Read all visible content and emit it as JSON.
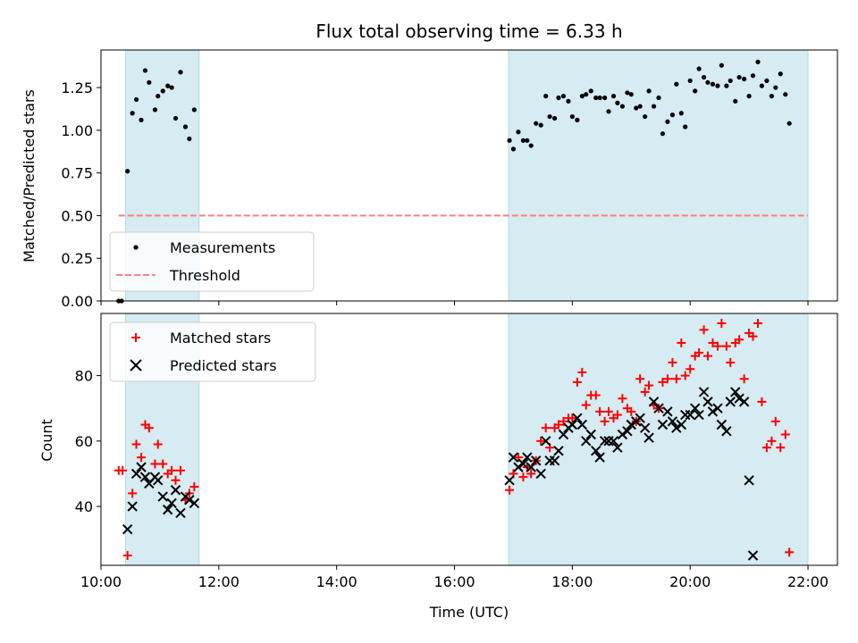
{
  "chart_data": [
    {
      "type": "scatter",
      "title": "Flux total observing time = 6.33 h",
      "xlabel": "",
      "ylabel": "Matched/Predicted stars",
      "xlim": [
        "10:00",
        "22:30"
      ],
      "ylim": [
        0,
        1.47
      ],
      "yticks": [
        "0.00",
        "0.25",
        "0.50",
        "0.75",
        "1.00",
        "1.25"
      ],
      "shaded_spans": [
        [
          "10:25",
          "11:40"
        ],
        [
          "16:55",
          "22:00"
        ]
      ],
      "legend_position": "lower-left",
      "series": [
        {
          "name": "Measurements",
          "marker": "dot",
          "color": "#000000",
          "points": [
            [
              "10:18",
              0.0
            ],
            [
              "10:21",
              0.0
            ],
            [
              "10:27",
              0.76
            ],
            [
              "10:32",
              1.1
            ],
            [
              "10:36",
              1.18
            ],
            [
              "10:41",
              1.06
            ],
            [
              "10:45",
              1.35
            ],
            [
              "10:49",
              1.28
            ],
            [
              "10:55",
              1.12
            ],
            [
              "10:58",
              1.2
            ],
            [
              "11:03",
              1.23
            ],
            [
              "11:08",
              1.26
            ],
            [
              "11:12",
              1.25
            ],
            [
              "11:16",
              1.07
            ],
            [
              "11:21",
              1.34
            ],
            [
              "11:26",
              1.02
            ],
            [
              "11:30",
              0.95
            ],
            [
              "11:35",
              1.12
            ],
            [
              "16:56",
              0.94
            ],
            [
              "17:00",
              0.89
            ],
            [
              "17:05",
              0.99
            ],
            [
              "17:10",
              0.94
            ],
            [
              "17:14",
              0.94
            ],
            [
              "17:18",
              0.91
            ],
            [
              "17:23",
              1.04
            ],
            [
              "17:28",
              1.03
            ],
            [
              "17:33",
              1.2
            ],
            [
              "17:37",
              1.08
            ],
            [
              "17:42",
              1.07
            ],
            [
              "17:46",
              1.19
            ],
            [
              "17:51",
              1.2
            ],
            [
              "17:56",
              1.17
            ],
            [
              "18:00",
              1.08
            ],
            [
              "18:05",
              1.06
            ],
            [
              "18:10",
              1.2
            ],
            [
              "18:14",
              1.21
            ],
            [
              "18:19",
              1.23
            ],
            [
              "18:24",
              1.19
            ],
            [
              "18:28",
              1.19
            ],
            [
              "18:33",
              1.19
            ],
            [
              "18:37",
              1.11
            ],
            [
              "18:42",
              1.2
            ],
            [
              "18:46",
              1.16
            ],
            [
              "18:51",
              1.14
            ],
            [
              "18:56",
              1.22
            ],
            [
              "19:00",
              1.21
            ],
            [
              "19:05",
              1.13
            ],
            [
              "19:09",
              1.14
            ],
            [
              "19:14",
              1.08
            ],
            [
              "19:18",
              1.23
            ],
            [
              "19:23",
              1.14
            ],
            [
              "19:28",
              1.19
            ],
            [
              "19:32",
              0.98
            ],
            [
              "19:37",
              1.05
            ],
            [
              "19:42",
              1.09
            ],
            [
              "19:46",
              1.27
            ],
            [
              "19:51",
              1.1
            ],
            [
              "19:55",
              1.02
            ],
            [
              "20:00",
              1.29
            ],
            [
              "20:05",
              1.23
            ],
            [
              "20:09",
              1.36
            ],
            [
              "20:14",
              1.31
            ],
            [
              "20:18",
              1.28
            ],
            [
              "20:23",
              1.27
            ],
            [
              "20:28",
              1.26
            ],
            [
              "20:32",
              1.38
            ],
            [
              "20:37",
              1.26
            ],
            [
              "20:41",
              1.29
            ],
            [
              "20:46",
              1.17
            ],
            [
              "20:50",
              1.31
            ],
            [
              "20:55",
              1.3
            ],
            [
              "21:00",
              1.2
            ],
            [
              "21:04",
              1.32
            ],
            [
              "21:09",
              1.4
            ],
            [
              "21:13",
              1.26
            ],
            [
              "21:18",
              1.29
            ],
            [
              "21:23",
              1.2
            ],
            [
              "21:27",
              1.25
            ],
            [
              "21:32",
              1.33
            ],
            [
              "21:37",
              1.21
            ],
            [
              "21:41",
              1.04
            ]
          ]
        },
        {
          "name": "Threshold",
          "marker": "dashed-line",
          "color": "#ff7f7f",
          "points": [
            [
              "10:18",
              0.5
            ],
            [
              "22:00",
              0.5
            ]
          ]
        }
      ]
    },
    {
      "type": "scatter",
      "title": "",
      "xlabel": "Time (UTC)",
      "ylabel": "Count",
      "xlim": [
        "10:00",
        "22:30"
      ],
      "ylim": [
        22,
        99
      ],
      "xticks": [
        "10:00",
        "12:00",
        "14:00",
        "16:00",
        "18:00",
        "20:00",
        "22:00"
      ],
      "yticks": [
        "40",
        "60",
        "80"
      ],
      "shaded_spans": [
        [
          "10:25",
          "11:40"
        ],
        [
          "16:55",
          "22:00"
        ]
      ],
      "legend_position": "top-left",
      "series": [
        {
          "name": "Matched stars",
          "marker": "plus",
          "color": "#ff0000",
          "points": [
            [
              "10:18",
              51
            ],
            [
              "10:22",
              51
            ],
            [
              "10:27",
              25
            ],
            [
              "10:32",
              44
            ],
            [
              "10:36",
              59
            ],
            [
              "10:41",
              55
            ],
            [
              "10:45",
              65
            ],
            [
              "10:49",
              64
            ],
            [
              "10:55",
              53
            ],
            [
              "10:58",
              59
            ],
            [
              "11:03",
              53
            ],
            [
              "11:08",
              50
            ],
            [
              "11:12",
              51
            ],
            [
              "11:16",
              48
            ],
            [
              "11:21",
              51
            ],
            [
              "11:26",
              42
            ],
            [
              "11:30",
              44
            ],
            [
              "11:35",
              46
            ],
            [
              "16:56",
              45
            ],
            [
              "17:00",
              50
            ],
            [
              "17:05",
              55
            ],
            [
              "17:10",
              49
            ],
            [
              "17:14",
              52
            ],
            [
              "17:18",
              50
            ],
            [
              "17:23",
              54
            ],
            [
              "17:28",
              60
            ],
            [
              "17:33",
              64
            ],
            [
              "17:37",
              58
            ],
            [
              "17:42",
              64
            ],
            [
              "17:46",
              65
            ],
            [
              "17:51",
              66
            ],
            [
              "17:56",
              67
            ],
            [
              "18:00",
              67
            ],
            [
              "18:05",
              78
            ],
            [
              "18:10",
              81
            ],
            [
              "18:14",
              71
            ],
            [
              "18:19",
              74
            ],
            [
              "18:24",
              74
            ],
            [
              "18:28",
              69
            ],
            [
              "18:33",
              66
            ],
            [
              "18:37",
              69
            ],
            [
              "18:42",
              67
            ],
            [
              "18:46",
              68
            ],
            [
              "18:51",
              73
            ],
            [
              "18:56",
              70
            ],
            [
              "19:00",
              69
            ],
            [
              "19:05",
              66
            ],
            [
              "19:09",
              79
            ],
            [
              "19:14",
              75
            ],
            [
              "19:18",
              77
            ],
            [
              "19:23",
              71
            ],
            [
              "19:28",
              70
            ],
            [
              "19:32",
              78
            ],
            [
              "19:37",
              79
            ],
            [
              "19:42",
              84
            ],
            [
              "19:46",
              79
            ],
            [
              "19:51",
              90
            ],
            [
              "19:55",
              80
            ],
            [
              "20:00",
              82
            ],
            [
              "20:05",
              86
            ],
            [
              "20:09",
              87
            ],
            [
              "20:14",
              94
            ],
            [
              "20:18",
              86
            ],
            [
              "20:23",
              90
            ],
            [
              "20:28",
              89
            ],
            [
              "20:32",
              96
            ],
            [
              "20:37",
              89
            ],
            [
              "20:41",
              84
            ],
            [
              "20:46",
              90
            ],
            [
              "20:50",
              91
            ],
            [
              "20:55",
              79
            ],
            [
              "21:00",
              93
            ],
            [
              "21:04",
              92
            ],
            [
              "21:09",
              96
            ],
            [
              "21:13",
              72
            ],
            [
              "21:18",
              58
            ],
            [
              "21:23",
              60
            ],
            [
              "21:27",
              66
            ],
            [
              "21:32",
              58
            ],
            [
              "21:37",
              62
            ],
            [
              "21:41",
              26
            ]
          ]
        },
        {
          "name": "Predicted stars",
          "marker": "x",
          "color": "#000000",
          "points": [
            [
              "10:27",
              33
            ],
            [
              "10:32",
              40
            ],
            [
              "10:36",
              50
            ],
            [
              "10:41",
              52
            ],
            [
              "10:45",
              49
            ],
            [
              "10:49",
              47
            ],
            [
              "10:55",
              49
            ],
            [
              "10:58",
              48
            ],
            [
              "11:03",
              43
            ],
            [
              "11:08",
              39
            ],
            [
              "11:12",
              41
            ],
            [
              "11:16",
              45
            ],
            [
              "11:21",
              38
            ],
            [
              "11:26",
              43
            ],
            [
              "11:30",
              42
            ],
            [
              "11:35",
              41
            ],
            [
              "16:56",
              48
            ],
            [
              "17:00",
              55
            ],
            [
              "17:05",
              52
            ],
            [
              "17:10",
              53
            ],
            [
              "17:14",
              55
            ],
            [
              "17:18",
              52
            ],
            [
              "17:23",
              54
            ],
            [
              "17:28",
              50
            ],
            [
              "17:33",
              60
            ],
            [
              "17:37",
              54
            ],
            [
              "17:42",
              54
            ],
            [
              "17:46",
              57
            ],
            [
              "17:51",
              62
            ],
            [
              "17:56",
              64
            ],
            [
              "18:00",
              65
            ],
            [
              "18:05",
              67
            ],
            [
              "18:10",
              65
            ],
            [
              "18:14",
              60
            ],
            [
              "18:19",
              62
            ],
            [
              "18:24",
              57
            ],
            [
              "18:28",
              55
            ],
            [
              "18:33",
              60
            ],
            [
              "18:37",
              60
            ],
            [
              "18:42",
              60
            ],
            [
              "18:46",
              58
            ],
            [
              "18:51",
              62
            ],
            [
              "18:56",
              63
            ],
            [
              "19:00",
              65
            ],
            [
              "19:05",
              66
            ],
            [
              "19:09",
              67
            ],
            [
              "19:14",
              64
            ],
            [
              "19:18",
              61
            ],
            [
              "19:23",
              72
            ],
            [
              "19:28",
              70
            ],
            [
              "19:32",
              65
            ],
            [
              "19:37",
              69
            ],
            [
              "19:42",
              66
            ],
            [
              "19:46",
              64
            ],
            [
              "19:51",
              65
            ],
            [
              "19:55",
              68
            ],
            [
              "20:00",
              68
            ],
            [
              "20:05",
              70
            ],
            [
              "20:09",
              68
            ],
            [
              "20:14",
              75
            ],
            [
              "20:18",
              72
            ],
            [
              "20:23",
              69
            ],
            [
              "20:28",
              70
            ],
            [
              "20:32",
              65
            ],
            [
              "20:37",
              63
            ],
            [
              "20:41",
              72
            ],
            [
              "20:46",
              75
            ],
            [
              "20:50",
              73
            ],
            [
              "20:55",
              72
            ],
            [
              "21:00",
              48
            ],
            [
              "21:04",
              25
            ]
          ]
        }
      ]
    }
  ]
}
